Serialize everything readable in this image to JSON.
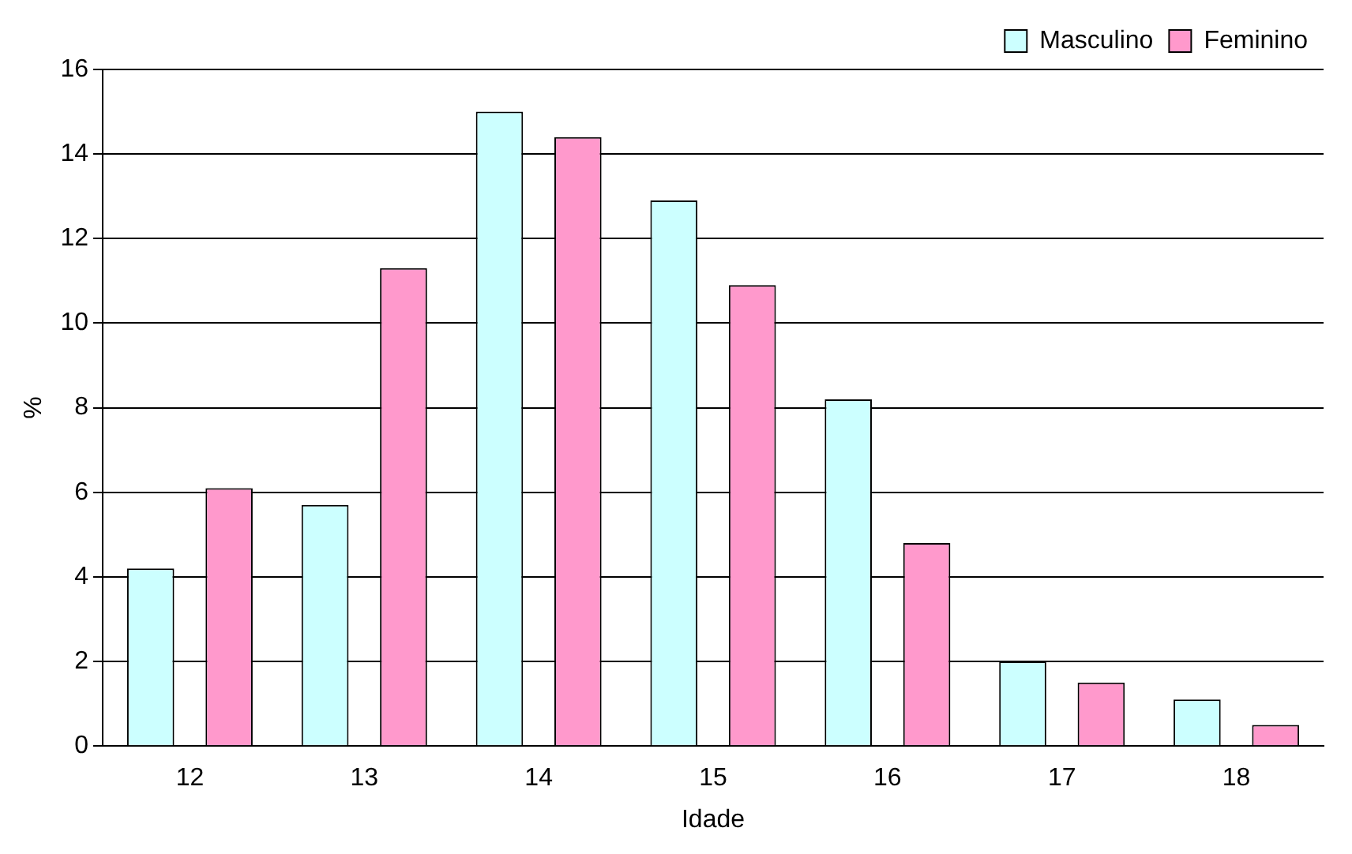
{
  "chart_data": {
    "type": "bar",
    "xlabel": "Idade",
    "ylabel": "%",
    "categories": [
      "12",
      "13",
      "14",
      "15",
      "16",
      "17",
      "18"
    ],
    "series": [
      {
        "name": "Masculino",
        "color": "#ccffff",
        "values": [
          4.2,
          5.7,
          15.0,
          12.9,
          8.2,
          2.0,
          1.1
        ]
      },
      {
        "name": "Feminino",
        "color": "#ff99cc",
        "values": [
          6.1,
          11.3,
          14.4,
          10.9,
          4.8,
          1.5,
          0.5
        ]
      }
    ],
    "ylim": [
      0,
      16
    ],
    "yticks": [
      0,
      2,
      4,
      6,
      8,
      10,
      12,
      14,
      16
    ],
    "grid": "y",
    "legend": "top right"
  }
}
